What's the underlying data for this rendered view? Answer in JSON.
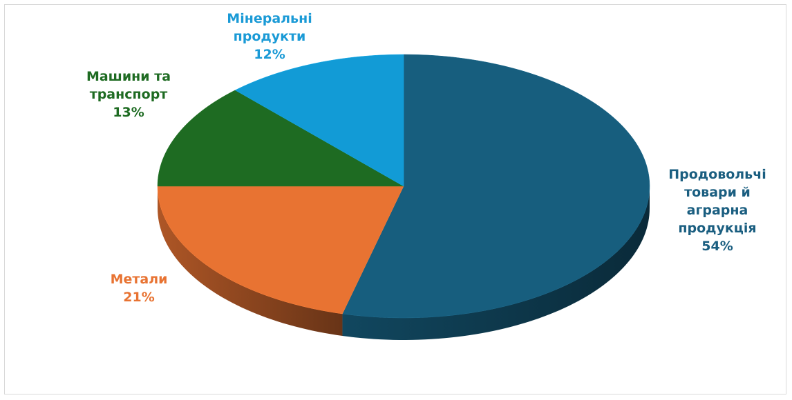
{
  "chart_data": {
    "type": "pie",
    "categories": [
      "Продовольчі товари й аграрна продукція",
      "Метали",
      "Машини та транспорт",
      "Мінеральні продукти"
    ],
    "values": [
      54,
      21,
      13,
      12
    ],
    "value_labels": [
      "54%",
      "21%",
      "13%",
      "12%"
    ],
    "colors": [
      "#175e7e",
      "#e87332",
      "#1e6b22",
      "#129bd6"
    ]
  }
}
